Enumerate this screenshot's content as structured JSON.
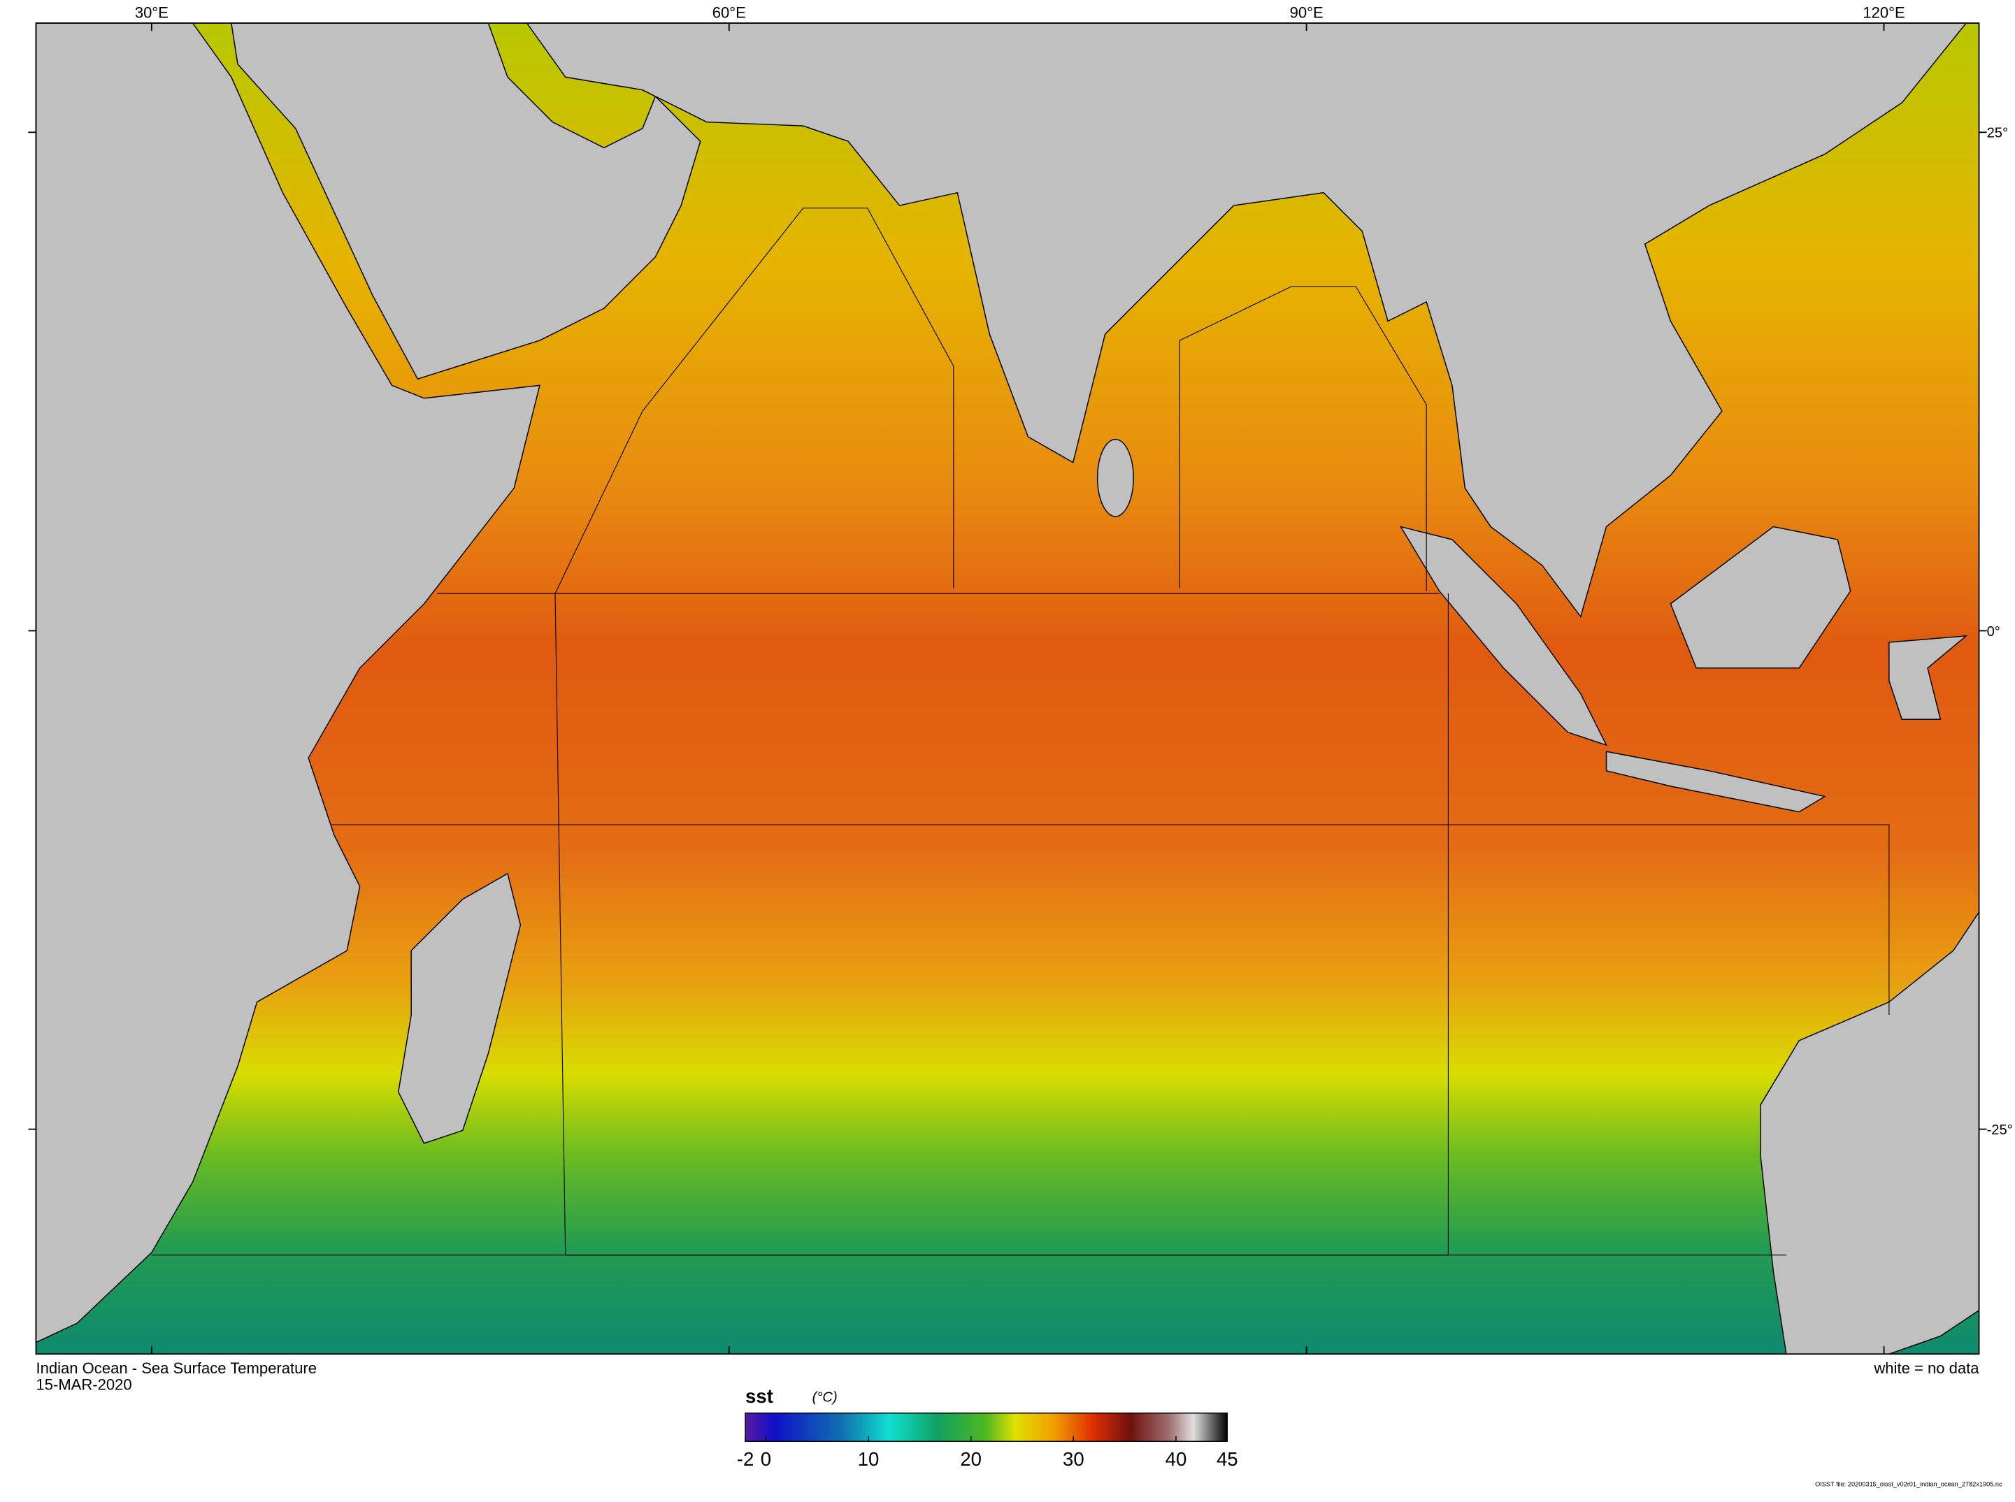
{
  "map": {
    "title": "Indian Ocean - Sea Surface Temperature",
    "date": "15-MAR-2020",
    "note": "white = no data",
    "file": "OISST file: 20200315_oisst_v02r01_indian_ocean_2782x1905.nc",
    "lon_ticks": [
      {
        "value": 30,
        "label": "30°E"
      },
      {
        "value": 60,
        "label": "60°E"
      },
      {
        "value": 90,
        "label": "90°E"
      },
      {
        "value": 120,
        "label": "120°E"
      }
    ],
    "lat_ticks": [
      {
        "value": 25,
        "label": "25°"
      },
      {
        "value": 0,
        "label": "0°"
      },
      {
        "value": -25,
        "label": "-25°"
      }
    ],
    "colorbar": {
      "variable": "sst",
      "units": "(°C)",
      "lim": [
        -2,
        45
      ],
      "ticks": [
        -2,
        0,
        10,
        20,
        30,
        40,
        45
      ]
    }
  }
}
